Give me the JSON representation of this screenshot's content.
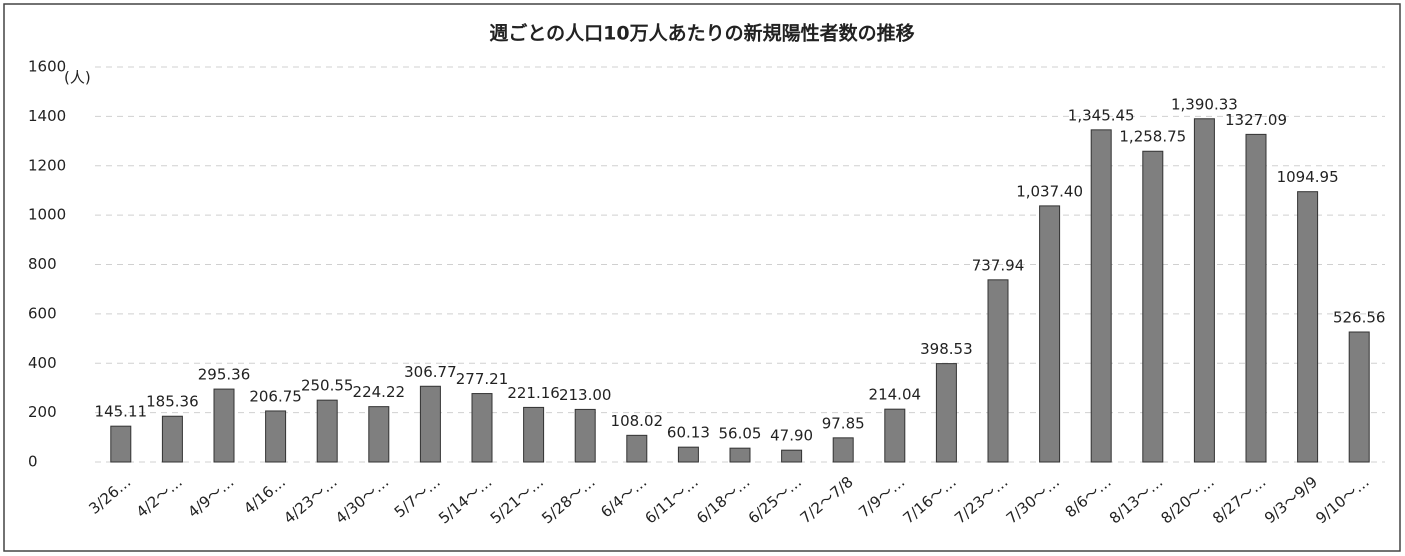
{
  "chart_data": {
    "type": "bar",
    "title": "週ごとの人口10万人あたりの新規陽性者数の推移",
    "y_unit": "(人)",
    "categories": [
      "3/26…",
      "4/2～…",
      "4/9～…",
      "4/16…",
      "4/23～…",
      "4/30～…",
      "5/7～…",
      "5/14～…",
      "5/21～…",
      "5/28～…",
      "6/4～…",
      "6/11～…",
      "6/18～…",
      "6/25～…",
      "7/2～7/8",
      "7/9～…",
      "7/16～…",
      "7/23～…",
      "7/30～…",
      "8/6～…",
      "8/13～…",
      "8/20～…",
      "8/27～…",
      "9/3～9/9",
      "9/10～…"
    ],
    "values": [
      145.11,
      185.36,
      295.36,
      206.75,
      250.55,
      224.22,
      306.77,
      277.21,
      221.16,
      213.0,
      108.02,
      60.13,
      56.05,
      47.9,
      97.85,
      214.04,
      398.53,
      737.94,
      1037.4,
      1345.45,
      1258.75,
      1390.33,
      1327.09,
      1094.95,
      526.56
    ],
    "value_labels": [
      "145.11",
      "185.36",
      "295.36",
      "206.75",
      "250.55",
      "224.22",
      "306.77",
      "277.21",
      "221.16",
      "213.00",
      "108.02",
      "60.13",
      "56.05",
      "47.90",
      "97.85",
      "214.04",
      "398.53",
      "737.94",
      "1,037.40",
      "1,345.45",
      "1,258.75",
      "1,390.33",
      "1327.09",
      "1094.95",
      "526.56"
    ],
    "color": "#7f7f7f",
    "ylim": [
      0,
      1600
    ],
    "yticks": [
      0,
      200,
      400,
      600,
      800,
      1000,
      1200,
      1400,
      1600
    ],
    "grid": true
  }
}
